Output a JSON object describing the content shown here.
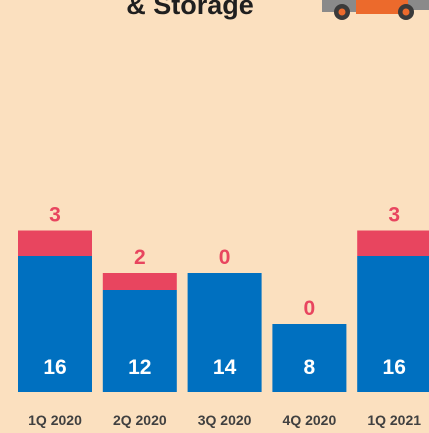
{
  "chart_data": {
    "type": "bar",
    "stacked": true,
    "title": "& Storage",
    "categories": [
      "1Q 2020",
      "2Q 2020",
      "3Q 2020",
      "4Q 2020",
      "1Q 2021"
    ],
    "series": [
      {
        "color": "#0070c0",
        "values": [
          16,
          12,
          14,
          8,
          16
        ]
      },
      {
        "color": "#e8455f",
        "values": [
          3,
          2,
          0,
          0,
          3
        ]
      }
    ],
    "ylim": [
      0,
      20
    ]
  }
}
